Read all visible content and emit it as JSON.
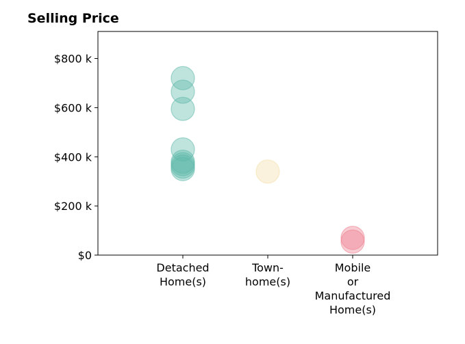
{
  "chart_data": {
    "type": "scatter",
    "title": "Selling Price",
    "xlabel": "",
    "ylabel": "",
    "categories": [
      [
        "Detached",
        "Home(s)"
      ],
      [
        "Town-",
        "home(s)"
      ],
      [
        "Mobile",
        "or",
        "Manufactured",
        "Home(s)"
      ]
    ],
    "y_ticks": [
      {
        "value": 0,
        "label": "$0"
      },
      {
        "value": 200000,
        "label": "$200 k"
      },
      {
        "value": 400000,
        "label": "$400 k"
      },
      {
        "value": 600000,
        "label": "$600 k"
      },
      {
        "value": 800000,
        "label": "$800 k"
      }
    ],
    "ylim": [
      0,
      910000
    ],
    "xlim": [
      -1,
      3
    ],
    "grid": false,
    "series": [
      {
        "category_index": 0,
        "color": "#5fb8aa",
        "values": [
          720000,
          665000,
          595000,
          430000,
          380000,
          370000,
          360000,
          350000
        ]
      },
      {
        "category_index": 1,
        "color": "#f2dfa8",
        "values": [
          340000
        ]
      },
      {
        "category_index": 2,
        "color": "#ee8090",
        "values": [
          70000,
          55000
        ]
      }
    ]
  }
}
